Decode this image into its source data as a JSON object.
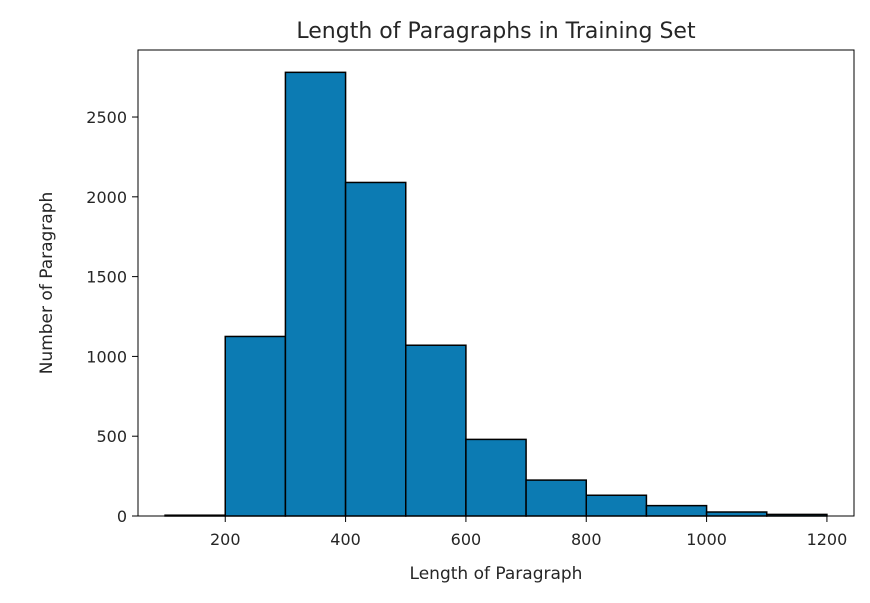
{
  "chart_data": {
    "type": "histogram",
    "title": "Length of Paragraphs in Training Set",
    "xlabel": "Length of Paragraph",
    "ylabel": "Number of Paragraph",
    "bins": [
      {
        "x0": 100,
        "x1": 200,
        "count": 5
      },
      {
        "x0": 200,
        "x1": 300,
        "count": 1125
      },
      {
        "x0": 300,
        "x1": 400,
        "count": 2780
      },
      {
        "x0": 400,
        "x1": 500,
        "count": 2090
      },
      {
        "x0": 500,
        "x1": 600,
        "count": 1070
      },
      {
        "x0": 600,
        "x1": 700,
        "count": 480
      },
      {
        "x0": 700,
        "x1": 800,
        "count": 225
      },
      {
        "x0": 800,
        "x1": 900,
        "count": 130
      },
      {
        "x0": 900,
        "x1": 1000,
        "count": 65
      },
      {
        "x0": 1000,
        "x1": 1100,
        "count": 25
      },
      {
        "x0": 1100,
        "x1": 1200,
        "count": 10
      }
    ],
    "xlim": [
      55,
      1245
    ],
    "ylim": [
      0,
      2920
    ],
    "xticks": [
      200,
      400,
      600,
      800,
      1000,
      1200
    ],
    "yticks": [
      0,
      500,
      1000,
      1500,
      2000,
      2500
    ],
    "bar_color": "#0c7bb3",
    "edge_color": "#000000",
    "grid": false,
    "legend": "none"
  }
}
